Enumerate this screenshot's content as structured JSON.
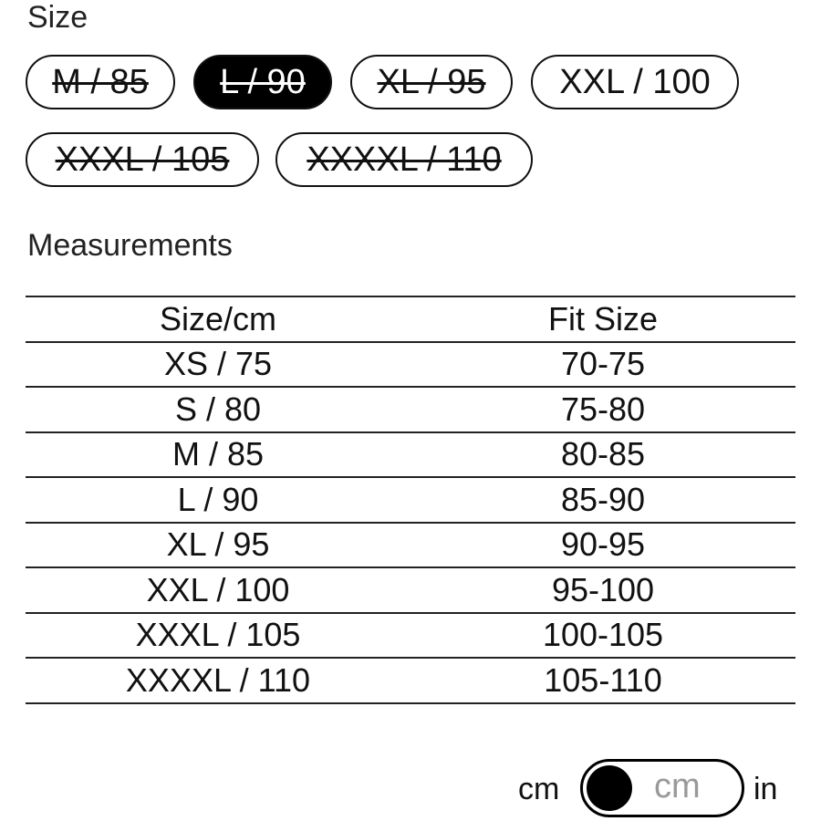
{
  "size_section": {
    "title": "Size",
    "options": [
      {
        "label": "M / 85",
        "available": false,
        "selected": false
      },
      {
        "label": "L / 90",
        "available": false,
        "selected": true
      },
      {
        "label": "XL / 95",
        "available": false,
        "selected": false
      },
      {
        "label": "XXL / 100",
        "available": true,
        "selected": false
      },
      {
        "label": "XXXL / 105",
        "available": false,
        "selected": false
      },
      {
        "label": "XXXXL / 110",
        "available": false,
        "selected": false
      }
    ]
  },
  "measurements": {
    "title": "Measurements",
    "headers": [
      "Size/cm",
      "Fit Size"
    ],
    "rows": [
      [
        "XS / 75",
        "70-75"
      ],
      [
        "S / 80",
        "75-80"
      ],
      [
        "M / 85",
        "80-85"
      ],
      [
        "L / 90",
        "85-90"
      ],
      [
        "XL / 95",
        "90-95"
      ],
      [
        "XXL / 100",
        "95-100"
      ],
      [
        "XXXL / 105",
        "100-105"
      ],
      [
        "XXXXL / 110",
        "105-110"
      ]
    ]
  },
  "unit_toggle": {
    "left_label": "cm",
    "right_label": "in",
    "current": "cm"
  }
}
